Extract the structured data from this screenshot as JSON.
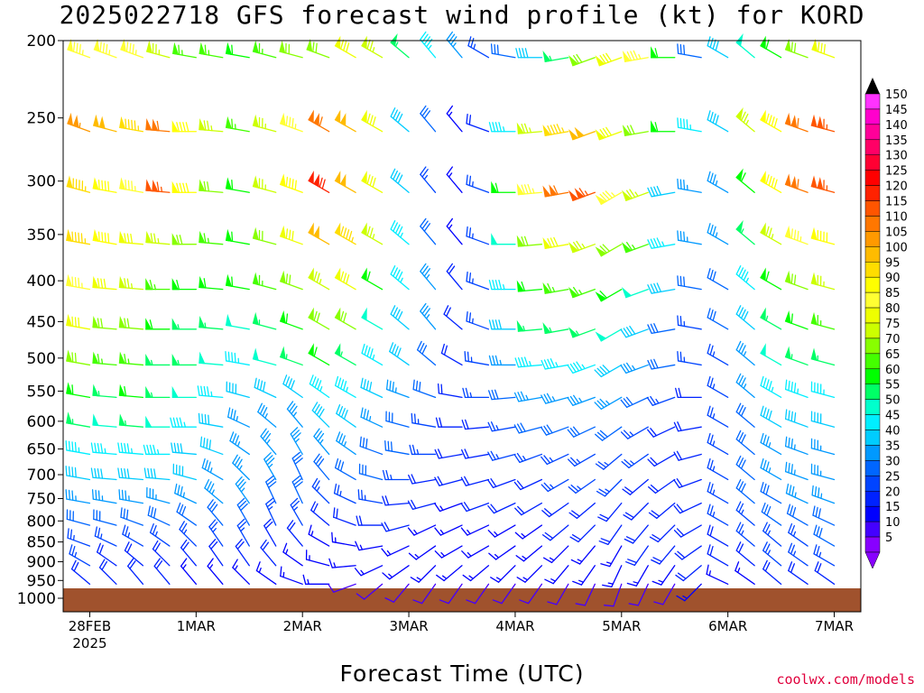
{
  "chart_data": {
    "type": "wind-barb-profile",
    "title": "2025022718 GFS forecast wind profile (kt) for KORD",
    "xlabel": "Forecast Time (UTC)",
    "credit": "coolwx.com/models",
    "y_ticks": [
      200,
      250,
      300,
      350,
      400,
      450,
      500,
      550,
      600,
      650,
      700,
      750,
      800,
      850,
      900,
      950,
      1000
    ],
    "y_range_hPa": [
      1000,
      200
    ],
    "y_scale": "log-pressure",
    "x_ticks": [
      {
        "line1": "28FEB",
        "line2": "2025",
        "hour": 6
      },
      {
        "line1": "1MAR",
        "line2": "",
        "hour": 30
      },
      {
        "line1": "2MAR",
        "line2": "",
        "hour": 54
      },
      {
        "line1": "3MAR",
        "line2": "",
        "hour": 78
      },
      {
        "line1": "4MAR",
        "line2": "",
        "hour": 102
      },
      {
        "line1": "5MAR",
        "line2": "",
        "hour": 126
      },
      {
        "line1": "6MAR",
        "line2": "",
        "hour": 150
      },
      {
        "line1": "7MAR",
        "line2": "",
        "hour": 174
      }
    ],
    "x_range_hours": [
      0,
      180
    ],
    "colorbar_ticks": [
      150,
      145,
      140,
      135,
      130,
      125,
      120,
      115,
      110,
      105,
      100,
      95,
      90,
      85,
      80,
      75,
      70,
      65,
      60,
      55,
      50,
      45,
      40,
      35,
      30,
      25,
      20,
      15,
      10,
      5
    ],
    "colorbar_colors": [
      "#ff33ff",
      "#ff00cc",
      "#ff0099",
      "#ff0066",
      "#ff0033",
      "#ff0000",
      "#ff2200",
      "#ff5500",
      "#ff7700",
      "#ff9900",
      "#ffbb00",
      "#ffdd00",
      "#ffff00",
      "#ffff33",
      "#eeff00",
      "#ccff00",
      "#88ff00",
      "#44ff00",
      "#00ff00",
      "#00ff66",
      "#00ffcc",
      "#00eeff",
      "#00ccff",
      "#0099ff",
      "#0066ff",
      "#0044ff",
      "#0022ff",
      "#0000ff",
      "#4400ff",
      "#8800ff"
    ],
    "ground_color": "#a0522d",
    "barb_levels_hPa": [
      210,
      260,
      310,
      360,
      410,
      460,
      510,
      560,
      610,
      660,
      710,
      760,
      810,
      860,
      910,
      960
    ],
    "barb_times_hours": [
      6,
      12,
      18,
      24,
      30,
      36,
      42,
      48,
      54,
      60,
      66,
      72,
      78,
      84,
      90,
      96,
      102,
      108,
      114,
      120,
      126,
      132,
      138,
      144,
      150,
      156,
      162,
      168,
      174,
      180
    ],
    "wind_speed_kt": [
      [
        85,
        85,
        85,
        75,
        65,
        65,
        60,
        65,
        70,
        70,
        80,
        75,
        55,
        45,
        35,
        25,
        30,
        40,
        55,
        70,
        80,
        85,
        60,
        30,
        40,
        50,
        60,
        70,
        80,
        85
      ],
      [
        105,
        100,
        95,
        110,
        90,
        75,
        65,
        75,
        85,
        110,
        100,
        80,
        40,
        30,
        15,
        20,
        45,
        75,
        95,
        100,
        80,
        70,
        60,
        45,
        40,
        75,
        90,
        110,
        115,
        125
      ],
      [
        95,
        90,
        85,
        115,
        90,
        70,
        60,
        75,
        90,
        120,
        100,
        80,
        40,
        25,
        15,
        25,
        60,
        85,
        110,
        115,
        85,
        75,
        40,
        35,
        35,
        60,
        90,
        110,
        115,
        120
      ],
      [
        95,
        90,
        80,
        75,
        70,
        65,
        60,
        70,
        80,
        100,
        95,
        75,
        45,
        30,
        15,
        25,
        50,
        70,
        80,
        75,
        70,
        65,
        45,
        35,
        35,
        55,
        75,
        85,
        90,
        95
      ],
      [
        85,
        80,
        75,
        65,
        60,
        60,
        60,
        65,
        70,
        75,
        80,
        60,
        45,
        35,
        20,
        25,
        45,
        60,
        65,
        65,
        60,
        50,
        40,
        30,
        30,
        45,
        60,
        70,
        75,
        80
      ],
      [
        80,
        70,
        70,
        60,
        55,
        55,
        50,
        55,
        60,
        70,
        70,
        50,
        40,
        35,
        20,
        25,
        40,
        55,
        55,
        55,
        50,
        40,
        30,
        25,
        30,
        40,
        55,
        60,
        65,
        70
      ],
      [
        70,
        65,
        65,
        55,
        55,
        50,
        45,
        50,
        55,
        60,
        55,
        45,
        40,
        30,
        20,
        25,
        35,
        45,
        45,
        45,
        40,
        35,
        30,
        25,
        25,
        35,
        50,
        55,
        55,
        60
      ],
      [
        60,
        55,
        60,
        55,
        50,
        45,
        40,
        40,
        40,
        45,
        45,
        40,
        35,
        30,
        20,
        25,
        30,
        35,
        35,
        35,
        35,
        30,
        25,
        20,
        25,
        35,
        45,
        45,
        45,
        50
      ],
      [
        55,
        50,
        55,
        50,
        45,
        40,
        35,
        35,
        35,
        40,
        40,
        35,
        30,
        25,
        20,
        20,
        25,
        30,
        30,
        30,
        30,
        25,
        20,
        20,
        25,
        30,
        40,
        40,
        40,
        45
      ],
      [
        45,
        45,
        45,
        45,
        40,
        40,
        35,
        35,
        35,
        35,
        35,
        30,
        30,
        25,
        20,
        20,
        25,
        25,
        25,
        25,
        25,
        25,
        20,
        20,
        25,
        30,
        35,
        35,
        35,
        40
      ],
      [
        40,
        40,
        40,
        40,
        40,
        35,
        35,
        35,
        30,
        30,
        30,
        30,
        25,
        20,
        20,
        20,
        20,
        20,
        25,
        25,
        25,
        20,
        20,
        20,
        25,
        30,
        35,
        35,
        35,
        40
      ],
      [
        35,
        35,
        35,
        35,
        35,
        35,
        35,
        30,
        30,
        25,
        25,
        25,
        20,
        20,
        15,
        20,
        20,
        20,
        20,
        20,
        20,
        20,
        20,
        20,
        25,
        30,
        30,
        35,
        35,
        35
      ],
      [
        30,
        30,
        30,
        30,
        30,
        30,
        30,
        25,
        25,
        20,
        20,
        20,
        20,
        15,
        15,
        15,
        15,
        15,
        20,
        20,
        20,
        20,
        20,
        20,
        25,
        25,
        30,
        30,
        30,
        35
      ],
      [
        25,
        25,
        25,
        25,
        25,
        25,
        25,
        20,
        20,
        15,
        15,
        15,
        15,
        15,
        15,
        15,
        15,
        15,
        15,
        15,
        15,
        20,
        20,
        20,
        20,
        25,
        25,
        25,
        30,
        30
      ],
      [
        25,
        20,
        20,
        20,
        20,
        20,
        20,
        20,
        15,
        15,
        15,
        15,
        15,
        15,
        15,
        15,
        15,
        15,
        15,
        15,
        15,
        15,
        15,
        20,
        20,
        20,
        25,
        25,
        25,
        25
      ],
      [
        20,
        20,
        20,
        20,
        15,
        15,
        15,
        15,
        15,
        15,
        10,
        10,
        10,
        10,
        10,
        10,
        10,
        10,
        10,
        10,
        10,
        10,
        10,
        15,
        15,
        15,
        20,
        20,
        20,
        20
      ]
    ],
    "wind_dir_deg": [
      [
        290,
        290,
        290,
        285,
        280,
        280,
        280,
        285,
        285,
        290,
        300,
        300,
        310,
        320,
        320,
        300,
        280,
        270,
        260,
        250,
        250,
        260,
        270,
        280,
        300,
        310,
        300,
        290,
        290,
        290
      ],
      [
        290,
        285,
        280,
        275,
        270,
        275,
        280,
        285,
        290,
        300,
        300,
        300,
        310,
        320,
        320,
        290,
        270,
        265,
        260,
        250,
        250,
        260,
        270,
        280,
        300,
        310,
        300,
        290,
        285,
        280
      ],
      [
        285,
        280,
        280,
        275,
        270,
        275,
        280,
        285,
        290,
        300,
        300,
        300,
        310,
        320,
        320,
        290,
        270,
        265,
        260,
        250,
        240,
        250,
        260,
        280,
        300,
        310,
        300,
        290,
        285,
        280
      ],
      [
        280,
        280,
        275,
        275,
        270,
        275,
        280,
        285,
        290,
        300,
        300,
        300,
        310,
        320,
        320,
        290,
        270,
        265,
        260,
        250,
        240,
        250,
        260,
        280,
        300,
        310,
        300,
        290,
        285,
        280
      ],
      [
        280,
        275,
        275,
        270,
        270,
        275,
        280,
        285,
        290,
        300,
        300,
        300,
        310,
        320,
        320,
        290,
        270,
        265,
        260,
        250,
        240,
        250,
        260,
        280,
        300,
        310,
        300,
        290,
        285,
        280
      ],
      [
        280,
        275,
        275,
        270,
        270,
        275,
        280,
        285,
        290,
        300,
        300,
        300,
        310,
        320,
        310,
        290,
        270,
        265,
        260,
        250,
        240,
        250,
        260,
        280,
        300,
        310,
        300,
        290,
        285,
        280
      ],
      [
        280,
        275,
        275,
        270,
        270,
        275,
        280,
        285,
        290,
        300,
        300,
        300,
        305,
        310,
        300,
        280,
        270,
        265,
        260,
        250,
        240,
        250,
        260,
        280,
        300,
        310,
        300,
        290,
        285,
        280
      ],
      [
        280,
        275,
        275,
        270,
        270,
        275,
        285,
        295,
        305,
        305,
        300,
        295,
        290,
        290,
        280,
        270,
        265,
        260,
        255,
        250,
        240,
        245,
        250,
        270,
        300,
        310,
        300,
        290,
        285,
        280
      ],
      [
        280,
        275,
        275,
        270,
        270,
        280,
        295,
        310,
        320,
        315,
        305,
        295,
        285,
        280,
        270,
        265,
        260,
        255,
        250,
        245,
        235,
        240,
        245,
        260,
        300,
        310,
        300,
        290,
        285,
        280
      ],
      [
        280,
        275,
        275,
        270,
        275,
        290,
        305,
        320,
        330,
        320,
        305,
        290,
        280,
        270,
        260,
        260,
        255,
        250,
        245,
        240,
        230,
        235,
        240,
        255,
        300,
        310,
        300,
        290,
        285,
        280
      ],
      [
        280,
        275,
        275,
        275,
        285,
        300,
        315,
        330,
        335,
        320,
        300,
        285,
        270,
        260,
        255,
        255,
        250,
        245,
        240,
        235,
        225,
        230,
        235,
        250,
        300,
        310,
        300,
        290,
        285,
        280
      ],
      [
        280,
        280,
        280,
        285,
        295,
        310,
        325,
        335,
        335,
        315,
        295,
        280,
        265,
        255,
        250,
        250,
        245,
        240,
        235,
        230,
        220,
        225,
        230,
        245,
        300,
        310,
        300,
        295,
        290,
        285
      ],
      [
        285,
        285,
        290,
        295,
        305,
        320,
        330,
        335,
        330,
        310,
        290,
        270,
        255,
        245,
        245,
        245,
        240,
        235,
        230,
        225,
        215,
        220,
        225,
        240,
        300,
        310,
        305,
        300,
        295,
        290
      ],
      [
        290,
        295,
        300,
        305,
        315,
        325,
        330,
        330,
        320,
        300,
        280,
        260,
        245,
        235,
        240,
        240,
        235,
        230,
        225,
        220,
        210,
        215,
        220,
        235,
        300,
        310,
        310,
        305,
        300,
        295
      ],
      [
        300,
        305,
        310,
        315,
        320,
        325,
        325,
        320,
        305,
        285,
        265,
        245,
        235,
        225,
        230,
        230,
        225,
        225,
        220,
        215,
        205,
        210,
        215,
        230,
        300,
        310,
        310,
        305,
        300,
        300
      ],
      [
        310,
        315,
        320,
        320,
        320,
        320,
        315,
        305,
        290,
        270,
        250,
        230,
        220,
        215,
        215,
        215,
        215,
        215,
        210,
        205,
        200,
        205,
        210,
        225,
        295,
        305,
        310,
        305,
        305,
        305
      ]
    ]
  }
}
